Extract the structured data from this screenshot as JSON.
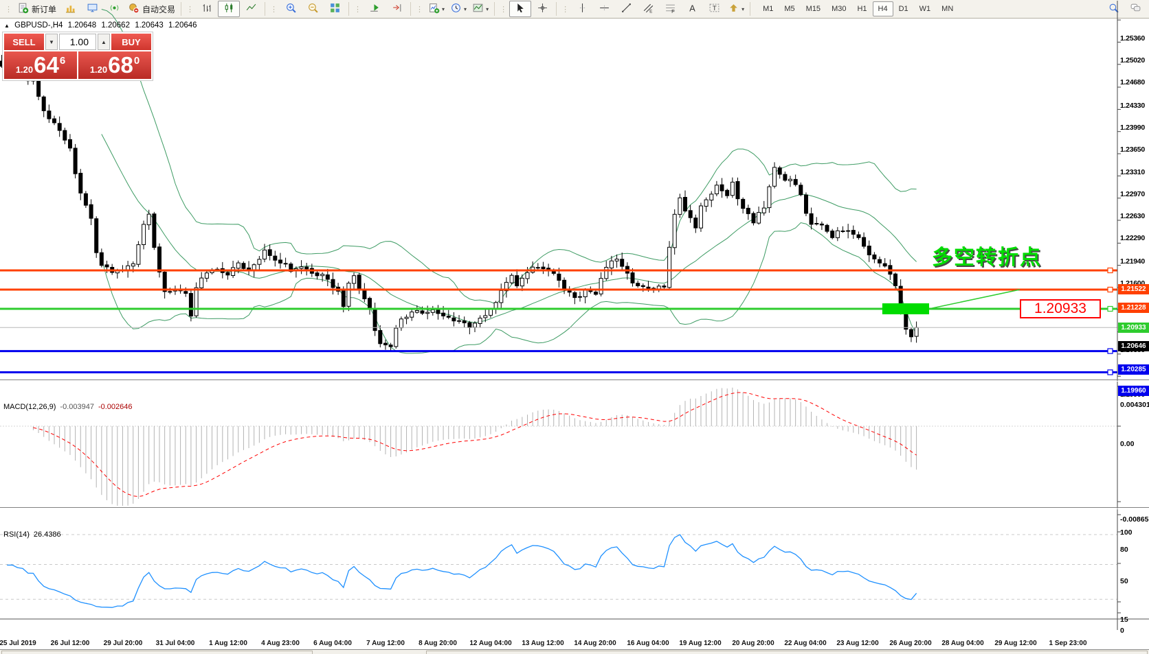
{
  "toolbar": {
    "groups": [
      {
        "items": [
          {
            "name": "new-order",
            "label": "新订单",
            "icon": "plus-doc"
          },
          {
            "name": "charts",
            "icon": "chart-gold"
          },
          {
            "name": "profiles",
            "icon": "profile-blue"
          },
          {
            "name": "signals",
            "icon": "signal-green"
          },
          {
            "name": "auto-trading",
            "label": "自动交易",
            "icon": "autotrade"
          }
        ]
      },
      {
        "items": [
          {
            "name": "bar-chart",
            "icon": "bars"
          },
          {
            "name": "candlestick-chart",
            "icon": "candles",
            "active": true
          },
          {
            "name": "line-chart",
            "icon": "line"
          }
        ]
      },
      {
        "items": [
          {
            "name": "zoom-in",
            "icon": "zoom-in"
          },
          {
            "name": "zoom-out",
            "icon": "zoom-out"
          },
          {
            "name": "tile-windows",
            "icon": "tiles"
          }
        ]
      },
      {
        "items": [
          {
            "name": "auto-scroll",
            "icon": "autoscroll"
          },
          {
            "name": "chart-shift",
            "icon": "shift"
          }
        ]
      },
      {
        "items": [
          {
            "name": "indicators",
            "icon": "indicators",
            "caret": true
          },
          {
            "name": "periods",
            "icon": "clock",
            "caret": true
          },
          {
            "name": "templates",
            "icon": "template",
            "caret": true
          }
        ]
      },
      {
        "items": [
          {
            "name": "cursor",
            "icon": "cursor",
            "active": true
          },
          {
            "name": "crosshair",
            "icon": "crosshair"
          }
        ]
      },
      {
        "items": [
          {
            "name": "vertical-line",
            "icon": "vline"
          },
          {
            "name": "horizontal-line",
            "icon": "hline"
          },
          {
            "name": "trendline",
            "icon": "tline"
          },
          {
            "name": "equidistant-channel",
            "icon": "channel"
          },
          {
            "name": "fibonacci",
            "icon": "fibo"
          },
          {
            "name": "text",
            "icon": "text-a"
          },
          {
            "name": "text-label",
            "icon": "text-t"
          },
          {
            "name": "arrows",
            "icon": "shapes",
            "caret": true
          }
        ]
      }
    ],
    "timeframes": [
      "M1",
      "M5",
      "M15",
      "M30",
      "H1",
      "H4",
      "D1",
      "W1",
      "MN"
    ],
    "active_timeframe": "H4"
  },
  "symbol_info": {
    "marker": "▲",
    "symbol": "GBPUSD-,H4",
    "open": "1.20648",
    "high": "1.20662",
    "low": "1.20643",
    "close": "1.20646"
  },
  "one_click": {
    "sell_label": "SELL",
    "buy_label": "BUY",
    "volume": "1.00",
    "spin_down": "▼",
    "spin_up": "▲",
    "sell_small": "1.20",
    "sell_big": "64",
    "sell_sup": "6",
    "buy_small": "1.20",
    "buy_big": "68",
    "buy_sup": "0"
  },
  "colors": {
    "resistance_line": "#FF4000",
    "pivot_line": "#2ECC2E",
    "support_line": "#0000EE",
    "band": "#3d9b63",
    "rsi_line": "#1E90FF",
    "macd_histogram": "#b3b3b3",
    "macd_signal": "#FF0000",
    "bid_line": "#b8b8b8",
    "bid_label_bg": "#000000",
    "green_zone": "#00DC00",
    "panel_red": "#d03a32"
  },
  "chart_data": {
    "type": "candlestick+indicators",
    "symbol": "GBPUSD-",
    "timeframe": "H4",
    "ohlc_display": {
      "open": "1.20648",
      "high": "1.20662",
      "low": "1.20643",
      "close": "1.20646"
    },
    "bars_total": 175,
    "price_waypoints": [
      [
        1,
        1.2465
      ],
      [
        4,
        1.2452
      ],
      [
        6,
        1.244
      ],
      [
        8,
        1.24
      ],
      [
        10,
        1.2375
      ],
      [
        13,
        1.234
      ],
      [
        14,
        1.23
      ],
      [
        15,
        1.227
      ],
      [
        17,
        1.223
      ],
      [
        18,
        1.218
      ],
      [
        19,
        1.216
      ],
      [
        21,
        1.215
      ],
      [
        23,
        1.2155
      ],
      [
        25,
        1.216
      ],
      [
        27,
        1.2225
      ],
      [
        28,
        1.2235
      ],
      [
        29,
        1.219
      ],
      [
        30,
        1.215
      ],
      [
        31,
        1.212
      ],
      [
        33,
        1.2125
      ],
      [
        35,
        1.2115
      ],
      [
        36,
        1.2085
      ],
      [
        37,
        1.2125
      ],
      [
        39,
        1.215
      ],
      [
        41,
        1.2155
      ],
      [
        43,
        1.2145
      ],
      [
        45,
        1.2165
      ],
      [
        47,
        1.215
      ],
      [
        49,
        1.217
      ],
      [
        50,
        1.218
      ],
      [
        52,
        1.217
      ],
      [
        54,
        1.216
      ],
      [
        55,
        1.215
      ],
      [
        57,
        1.216
      ],
      [
        59,
        1.215
      ],
      [
        61,
        1.2145
      ],
      [
        64,
        1.212
      ],
      [
        65,
        1.2095
      ],
      [
        66,
        1.213
      ],
      [
        67,
        1.2145
      ],
      [
        68,
        1.2125
      ],
      [
        70,
        1.209
      ],
      [
        71,
        1.206
      ],
      [
        72,
        1.204
      ],
      [
        74,
        1.2032
      ],
      [
        75,
        1.2065
      ],
      [
        76,
        1.2075
      ],
      [
        78,
        1.209
      ],
      [
        80,
        1.2085
      ],
      [
        82,
        1.2095
      ],
      [
        84,
        1.208
      ],
      [
        87,
        1.2075
      ],
      [
        89,
        1.2065
      ],
      [
        91,
        1.208
      ],
      [
        93,
        1.209
      ],
      [
        95,
        1.212
      ],
      [
        97,
        1.2145
      ],
      [
        98,
        1.213
      ],
      [
        100,
        1.215
      ],
      [
        101,
        1.216
      ],
      [
        103,
        1.2155
      ],
      [
        105,
        1.2145
      ],
      [
        107,
        1.2125
      ],
      [
        109,
        1.211
      ],
      [
        111,
        1.212
      ],
      [
        113,
        1.2115
      ],
      [
        115,
        1.216
      ],
      [
        117,
        1.217
      ],
      [
        118,
        1.2155
      ],
      [
        120,
        1.2135
      ],
      [
        122,
        1.2125
      ],
      [
        124,
        1.212
      ],
      [
        126,
        1.213
      ],
      [
        128,
        1.224
      ],
      [
        129,
        1.226
      ],
      [
        131,
        1.223
      ],
      [
        132,
        1.2215
      ],
      [
        133,
        1.225
      ],
      [
        135,
        1.227
      ],
      [
        136,
        1.2285
      ],
      [
        138,
        1.227
      ],
      [
        139,
        1.229
      ],
      [
        140,
        1.226
      ],
      [
        142,
        1.224
      ],
      [
        143,
        1.2225
      ],
      [
        145,
        1.225
      ],
      [
        146,
        1.228
      ],
      [
        147,
        1.231
      ],
      [
        149,
        1.229
      ],
      [
        150,
        1.2295
      ],
      [
        152,
        1.227
      ],
      [
        153,
        1.224
      ],
      [
        154,
        1.2225
      ],
      [
        156,
        1.222
      ],
      [
        158,
        1.2205
      ],
      [
        160,
        1.2215
      ],
      [
        162,
        1.221
      ],
      [
        164,
        1.219
      ],
      [
        165,
        1.2175
      ],
      [
        167,
        1.2165
      ],
      [
        168,
        1.216
      ],
      [
        170,
        1.213
      ],
      [
        171,
        1.2095
      ],
      [
        172,
        1.206
      ],
      [
        173,
        1.205
      ],
      [
        174,
        1.20646
      ]
    ],
    "bollinger": {
      "period": 20,
      "deviation": 2
    },
    "price_axis_ticks": [
      "1.25360",
      "1.25020",
      "1.24680",
      "1.24330",
      "1.23990",
      "1.23650",
      "1.23310",
      "1.22970",
      "1.22630",
      "1.22290",
      "1.21940",
      "1.21600",
      "1.21260",
      "1.20920",
      "1.20580",
      "1.20240",
      "1.19900"
    ],
    "time_axis_labels": [
      "25 Jul 2019",
      "26 Jul 12:00",
      "29 Jul 20:00",
      "31 Jul 04:00",
      "1 Aug 12:00",
      "4 Aug 23:00",
      "6 Aug 04:00",
      "7 Aug 12:00",
      "8 Aug 20:00",
      "12 Aug 04:00",
      "13 Aug 12:00",
      "14 Aug 20:00",
      "16 Aug 04:00",
      "19 Aug 12:00",
      "20 Aug 20:00",
      "22 Aug 04:00",
      "23 Aug 12:00",
      "26 Aug 20:00",
      "28 Aug 04:00",
      "29 Aug 12:00",
      "1 Sep 23:00"
    ],
    "horizontal_lines": [
      {
        "price": "1.21522",
        "value": 1.21522,
        "color": "#FF4000",
        "role": "resistance"
      },
      {
        "price": "1.21228",
        "value": 1.21228,
        "color": "#FF4000",
        "role": "resistance"
      },
      {
        "price": "1.20933",
        "value": 1.20933,
        "color": "#2ECC2E",
        "role": "pivot"
      },
      {
        "price": "1.20285",
        "value": 1.20285,
        "color": "#0000EE",
        "role": "support"
      },
      {
        "price": "1.19960",
        "value": 1.1996,
        "color": "#0000EE",
        "role": "support"
      }
    ],
    "bid_price": {
      "price": "1.20646",
      "value": 1.20646
    },
    "green_zone": {
      "bar_start": 167.5,
      "bar_end": 176.4,
      "price_top": 1.21017,
      "price_bottom": 1.20849
    },
    "red_price_label": "1.20933",
    "annotation": "多空转折点",
    "macd": {
      "label": "MACD(12,26,9)",
      "value1": "-0.003947",
      "value2": "-0.002646",
      "axis_max": "0.004301",
      "axis_zero": "0.00",
      "axis_min": "-0.008651",
      "params": [
        12,
        26,
        9
      ]
    },
    "rsi": {
      "label": "RSI(14)",
      "value": "26.4386",
      "period": 14,
      "levels": [
        80,
        50,
        15
      ],
      "axis_labels": [
        "100",
        "80",
        "50",
        "15",
        "0"
      ]
    }
  }
}
